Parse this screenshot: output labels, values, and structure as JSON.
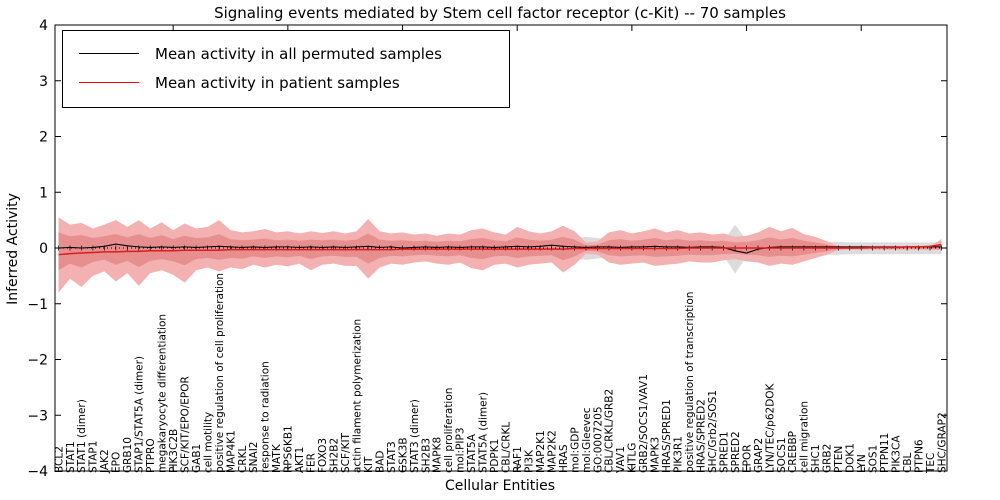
{
  "figure": {
    "title": "Signaling events mediated by Stem cell factor receptor (c-Kit) -- 70 samples",
    "xlabel": "Cellular Entities",
    "ylabel": "Inferred Activity"
  },
  "axes": {
    "yticks": [
      "4",
      "3",
      "2",
      "1",
      "0",
      "−1",
      "−2",
      "−3",
      "−4"
    ],
    "ytick_values": [
      4,
      3,
      2,
      1,
      0,
      -1,
      -2,
      -3,
      -4
    ],
    "ylim": [
      -4,
      4
    ]
  },
  "colors": {
    "black_line": "#000000",
    "red_line": "#dd1c1c",
    "legend_red": "#ff0000",
    "band_outer": "#f3b1b1",
    "band_inner": "#e78f8f",
    "band_gray": "#dcdcdc"
  },
  "chart_data": {
    "type": "line",
    "title": "Signaling events mediated by Stem cell factor receptor (c-Kit) -- 70 samples",
    "xlabel": "Cellular Entities",
    "ylabel": "Inferred Activity",
    "ylim": [
      -4,
      4
    ],
    "grid": false,
    "legend_position": "upper left",
    "categories": [
      "BCL2",
      "STAT1",
      "STAT1 (dimer)",
      "STAP1",
      "JAK2",
      "EPO",
      "GRB10",
      "STAP1/STAT5A (dimer)",
      "PTPRO",
      "megakaryocyte differentiation",
      "PIK3C2B",
      "SCF/KIT/EPO/EPOR",
      "GAB1",
      "cell motility",
      "positive regulation of cell proliferation",
      "MAP4K1",
      "CRKL",
      "SNAI2",
      "response to radiation",
      "MATK",
      "RPS6KB1",
      "AKT1",
      "FER",
      "FOXO3",
      "SH2B2",
      "SCF/KIT",
      "actin filament polymerization",
      "KIT",
      "BAD",
      "STAT3",
      "GSK3B",
      "STAT3 (dimer)",
      "SH2B3",
      "MAPK8",
      "cell proliferation",
      "mol:PIP3",
      "STAT5A",
      "STAT5A (dimer)",
      "PDPK1",
      "CBL/CRKL",
      "RAF1",
      "PI3K",
      "MAP2K1",
      "MAP2K2",
      "HRAS",
      "mol:GDP",
      "mol:Gleevec",
      "GO:0007205",
      "CBL/CRKL/GRB2",
      "VAV1",
      "KITLG",
      "GRB2/SOCS1/VAV1",
      "MAPK3",
      "HRAS/SPRED1",
      "PIK3R1",
      "positive regulation of transcription",
      "HRAS/SPRED2",
      "SHC/Grb2/SOS1",
      "SPRED1",
      "SPRED2",
      "EPOR",
      "GRAP2",
      "LYN/TEC/p62DOK",
      "SOCS1",
      "CREBBP",
      "cell migration",
      "SHC1",
      "GRB2",
      "PTEN",
      "DOK1",
      "LYN",
      "SOS1",
      "PTPN11",
      "PIK3CA",
      "CBL",
      "PTPN6",
      "TEC",
      "SHC/GRAP2"
    ],
    "series": [
      {
        "name": "Mean activity in all permuted samples",
        "color": "#000000",
        "values": [
          0.0,
          0.01,
          0.0,
          0.01,
          0.03,
          0.07,
          0.04,
          0.02,
          0.01,
          0.02,
          0.01,
          0.02,
          0.01,
          0.02,
          0.03,
          0.02,
          0.01,
          0.02,
          0.01,
          0.02,
          0.02,
          0.01,
          0.02,
          0.01,
          0.02,
          0.01,
          0.02,
          0.03,
          0.01,
          0.02,
          0.0,
          0.01,
          0.02,
          0.01,
          0.02,
          0.01,
          0.02,
          0.02,
          0.01,
          0.02,
          0.03,
          0.02,
          0.03,
          0.05,
          0.03,
          0.02,
          0.01,
          0.02,
          0.02,
          0.01,
          0.02,
          0.02,
          0.03,
          0.02,
          0.02,
          0.01,
          0.02,
          0.02,
          0.01,
          -0.05,
          -0.09,
          -0.02,
          0.01,
          0.02,
          0.02,
          0.02,
          0.02,
          0.02,
          0.02,
          0.02,
          0.02,
          0.02,
          0.02,
          0.02,
          0.02,
          0.02,
          0.02,
          0.02
        ]
      },
      {
        "name": "Mean activity in patient samples",
        "color": "#dd1c1c",
        "values": [
          -0.12,
          -0.1,
          -0.09,
          -0.08,
          -0.07,
          -0.07,
          -0.06,
          -0.06,
          -0.05,
          -0.05,
          -0.05,
          -0.04,
          -0.04,
          -0.04,
          -0.04,
          -0.03,
          -0.03,
          -0.03,
          -0.03,
          -0.03,
          -0.03,
          -0.03,
          -0.03,
          -0.03,
          -0.03,
          -0.03,
          -0.03,
          -0.03,
          -0.03,
          -0.03,
          -0.02,
          -0.02,
          -0.02,
          -0.02,
          -0.02,
          -0.02,
          -0.02,
          -0.02,
          -0.02,
          -0.02,
          -0.02,
          -0.02,
          -0.02,
          -0.02,
          -0.02,
          -0.01,
          -0.01,
          -0.01,
          -0.01,
          -0.01,
          -0.01,
          -0.01,
          -0.01,
          -0.01,
          -0.01,
          0.0,
          0.0,
          0.0,
          0.0,
          0.0,
          0.0,
          0.0,
          0.0,
          0.0,
          0.0,
          0.0,
          0.0,
          0.0,
          0.0,
          0.0,
          0.0,
          0.01,
          0.01,
          0.01,
          0.02,
          0.02,
          0.03,
          0.06
        ]
      }
    ],
    "bands": [
      {
        "name": "permuted samples range (gray)",
        "color": "#dcdcdc",
        "upper": [
          0.14,
          0.13,
          0.13,
          0.13,
          0.13,
          0.13,
          0.13,
          0.13,
          0.13,
          0.13,
          0.13,
          0.13,
          0.13,
          0.13,
          0.13,
          0.13,
          0.13,
          0.13,
          0.13,
          0.13,
          0.13,
          0.13,
          0.13,
          0.13,
          0.13,
          0.13,
          0.13,
          0.14,
          0.13,
          0.13,
          0.13,
          0.13,
          0.13,
          0.13,
          0.13,
          0.13,
          0.13,
          0.13,
          0.13,
          0.13,
          0.13,
          0.13,
          0.13,
          0.13,
          0.14,
          0.18,
          0.2,
          0.18,
          0.14,
          0.13,
          0.13,
          0.13,
          0.16,
          0.16,
          0.15,
          0.13,
          0.13,
          0.13,
          0.13,
          0.42,
          0.14,
          0.13,
          0.16,
          0.14,
          0.13,
          0.12,
          0.12,
          0.11,
          0.11,
          0.1,
          0.1,
          0.1,
          0.1,
          0.1,
          0.1,
          0.1,
          0.1,
          0.1
        ],
        "lower": [
          -0.15,
          -0.14,
          -0.14,
          -0.14,
          -0.14,
          -0.14,
          -0.14,
          -0.14,
          -0.14,
          -0.14,
          -0.14,
          -0.14,
          -0.14,
          -0.14,
          -0.14,
          -0.14,
          -0.14,
          -0.14,
          -0.14,
          -0.14,
          -0.14,
          -0.14,
          -0.14,
          -0.14,
          -0.14,
          -0.14,
          -0.14,
          -0.15,
          -0.14,
          -0.14,
          -0.14,
          -0.14,
          -0.14,
          -0.14,
          -0.14,
          -0.14,
          -0.14,
          -0.14,
          -0.14,
          -0.14,
          -0.14,
          -0.14,
          -0.14,
          -0.14,
          -0.15,
          -0.19,
          -0.21,
          -0.19,
          -0.15,
          -0.14,
          -0.14,
          -0.14,
          -0.17,
          -0.17,
          -0.16,
          -0.14,
          -0.14,
          -0.14,
          -0.14,
          -0.46,
          -0.15,
          -0.14,
          -0.17,
          -0.15,
          -0.14,
          -0.13,
          -0.13,
          -0.12,
          -0.12,
          -0.11,
          -0.11,
          -0.11,
          -0.11,
          -0.11,
          -0.11,
          -0.11,
          -0.11,
          -0.11
        ]
      },
      {
        "name": "patient samples outer band",
        "color": "#f3b1b1",
        "upper": [
          0.55,
          0.42,
          0.45,
          0.35,
          0.42,
          0.5,
          0.38,
          0.5,
          0.35,
          0.46,
          0.32,
          0.44,
          0.35,
          0.38,
          0.5,
          0.32,
          0.28,
          0.3,
          0.34,
          0.28,
          0.3,
          0.26,
          0.3,
          0.27,
          0.3,
          0.26,
          0.3,
          0.52,
          0.3,
          0.26,
          0.28,
          0.24,
          0.26,
          0.22,
          0.26,
          0.24,
          0.32,
          0.35,
          0.28,
          0.24,
          0.38,
          0.3,
          0.26,
          0.3,
          0.4,
          0.3,
          0.1,
          0.12,
          0.28,
          0.32,
          0.26,
          0.3,
          0.35,
          0.28,
          0.32,
          0.26,
          0.28,
          0.24,
          0.26,
          0.2,
          0.22,
          0.28,
          0.38,
          0.3,
          0.36,
          0.25,
          0.2,
          0.12,
          0.04,
          0.03,
          0.03,
          0.03,
          0.03,
          0.03,
          0.03,
          0.03,
          0.03,
          0.16
        ],
        "lower": [
          -0.8,
          -0.55,
          -0.7,
          -0.5,
          -0.42,
          -0.6,
          -0.45,
          -0.68,
          -0.45,
          -0.4,
          -0.48,
          -0.62,
          -0.4,
          -0.35,
          -0.42,
          -0.35,
          -0.38,
          -0.3,
          -0.35,
          -0.3,
          -0.33,
          -0.28,
          -0.4,
          -0.3,
          -0.28,
          -0.32,
          -0.32,
          -0.55,
          -0.35,
          -0.28,
          -0.3,
          -0.26,
          -0.24,
          -0.28,
          -0.3,
          -0.26,
          -0.36,
          -0.4,
          -0.3,
          -0.28,
          -0.35,
          -0.3,
          -0.28,
          -0.26,
          -0.44,
          -0.3,
          -0.1,
          -0.12,
          -0.26,
          -0.3,
          -0.28,
          -0.26,
          -0.32,
          -0.3,
          -0.28,
          -0.24,
          -0.26,
          -0.26,
          -0.22,
          -0.2,
          -0.24,
          -0.26,
          -0.32,
          -0.28,
          -0.3,
          -0.24,
          -0.18,
          -0.12,
          -0.04,
          -0.03,
          -0.03,
          -0.03,
          -0.03,
          -0.03,
          -0.03,
          -0.03,
          -0.03,
          -0.04
        ]
      },
      {
        "name": "patient samples inner band",
        "color": "#e78f8f",
        "upper": [
          0.28,
          0.21,
          0.23,
          0.18,
          0.21,
          0.25,
          0.19,
          0.25,
          0.18,
          0.23,
          0.16,
          0.22,
          0.18,
          0.19,
          0.25,
          0.16,
          0.14,
          0.15,
          0.17,
          0.14,
          0.15,
          0.13,
          0.15,
          0.14,
          0.15,
          0.13,
          0.15,
          0.26,
          0.15,
          0.13,
          0.14,
          0.12,
          0.13,
          0.11,
          0.13,
          0.12,
          0.16,
          0.18,
          0.14,
          0.12,
          0.19,
          0.15,
          0.13,
          0.15,
          0.2,
          0.15,
          0.05,
          0.06,
          0.14,
          0.16,
          0.13,
          0.15,
          0.18,
          0.14,
          0.16,
          0.13,
          0.14,
          0.12,
          0.13,
          0.1,
          0.11,
          0.14,
          0.19,
          0.15,
          0.18,
          0.13,
          0.1,
          0.06,
          0.02,
          0.02,
          0.02,
          0.02,
          0.02,
          0.02,
          0.02,
          0.02,
          0.02,
          0.08
        ],
        "lower": [
          -0.4,
          -0.28,
          -0.35,
          -0.25,
          -0.21,
          -0.3,
          -0.23,
          -0.34,
          -0.23,
          -0.2,
          -0.24,
          -0.31,
          -0.2,
          -0.18,
          -0.21,
          -0.18,
          -0.19,
          -0.15,
          -0.18,
          -0.15,
          -0.17,
          -0.14,
          -0.2,
          -0.15,
          -0.14,
          -0.16,
          -0.16,
          -0.28,
          -0.18,
          -0.14,
          -0.15,
          -0.13,
          -0.12,
          -0.14,
          -0.15,
          -0.13,
          -0.18,
          -0.2,
          -0.15,
          -0.14,
          -0.18,
          -0.15,
          -0.14,
          -0.13,
          -0.22,
          -0.15,
          -0.05,
          -0.06,
          -0.13,
          -0.15,
          -0.14,
          -0.13,
          -0.16,
          -0.15,
          -0.14,
          -0.12,
          -0.13,
          -0.13,
          -0.11,
          -0.1,
          -0.12,
          -0.13,
          -0.16,
          -0.14,
          -0.15,
          -0.12,
          -0.09,
          -0.06,
          -0.02,
          -0.02,
          -0.02,
          -0.02,
          -0.02,
          -0.02,
          -0.02,
          -0.02,
          -0.02,
          -0.02
        ]
      }
    ]
  }
}
